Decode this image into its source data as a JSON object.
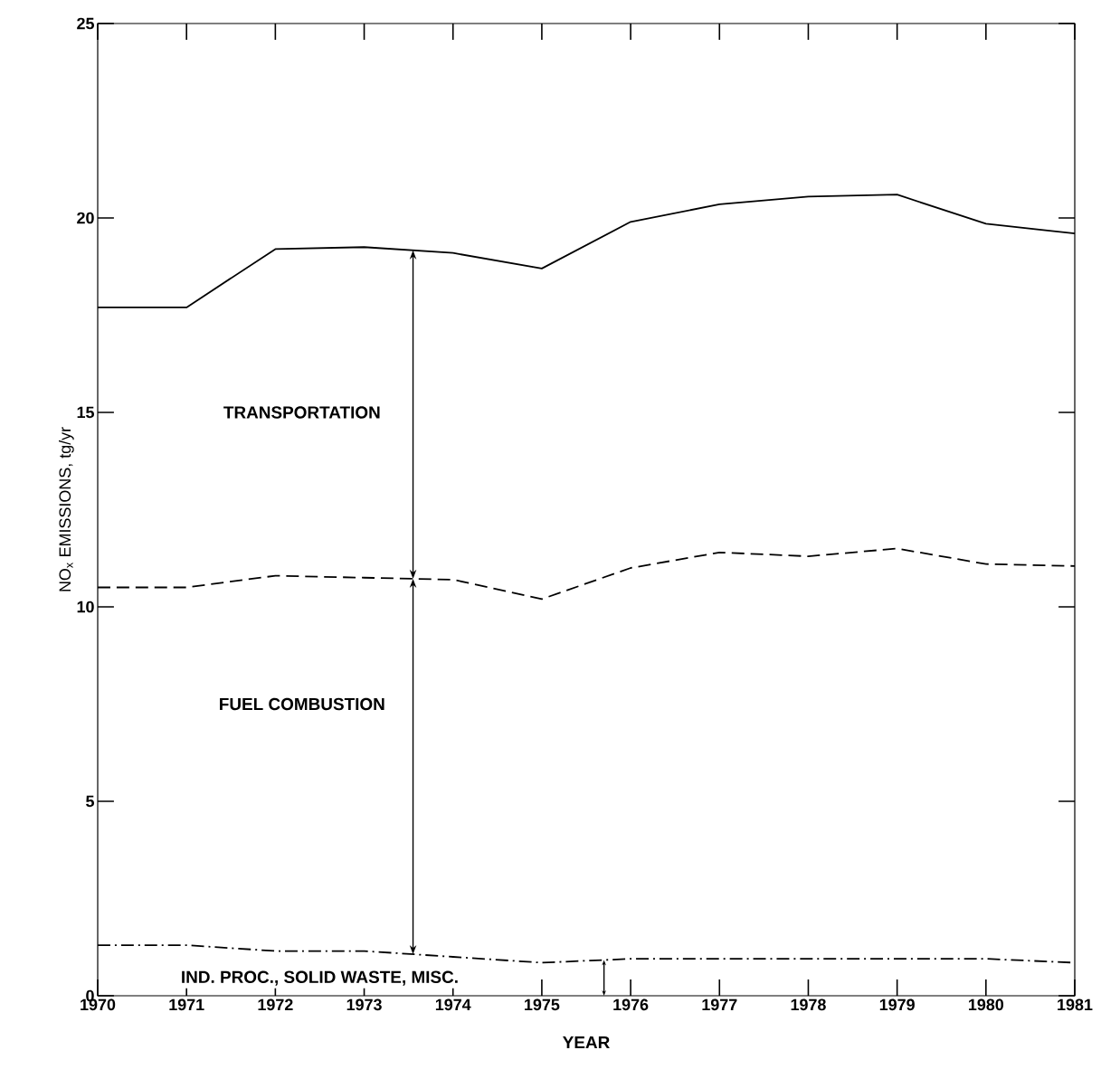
{
  "chart_data": {
    "type": "line",
    "xlabel": "YEAR",
    "ylabel": "NO$_{x}$ EMISSIONS, tg/yr",
    "x": [
      1970,
      1971,
      1972,
      1973,
      1974,
      1975,
      1976,
      1977,
      1978,
      1979,
      1980,
      1981
    ],
    "series": [
      {
        "color": "#000000",
        "line_style": "solid",
        "values": [
          17.7,
          17.7,
          19.2,
          19.25,
          19.1,
          18.7,
          19.9,
          20.35,
          20.55,
          20.6,
          19.85,
          19.6
        ]
      },
      {
        "color": "#000000",
        "line_style": "dashed",
        "values": [
          10.5,
          10.5,
          10.8,
          10.75,
          10.7,
          10.2,
          11.0,
          11.4,
          11.3,
          11.5,
          11.1,
          11.05
        ]
      },
      {
        "color": "#000000",
        "line_style": "dashdot",
        "values": [
          1.3,
          1.3,
          1.15,
          1.15,
          1.0,
          0.85,
          0.95,
          0.95,
          0.95,
          0.95,
          0.95,
          0.85
        ]
      }
    ],
    "xlim": [
      1970,
      1981
    ],
    "ylim": [
      0,
      25
    ],
    "xticks": [
      1970,
      1971,
      1972,
      1973,
      1974,
      1975,
      1976,
      1977,
      1978,
      1979,
      1980,
      1981
    ],
    "yticks": [
      0,
      5,
      10,
      15,
      20,
      25
    ],
    "marker": "none",
    "annotations": [
      "TRANSPORTATION",
      "FUEL COMBUSTION",
      "IND. PROC., SOLID WASTE, MISC."
    ]
  }
}
